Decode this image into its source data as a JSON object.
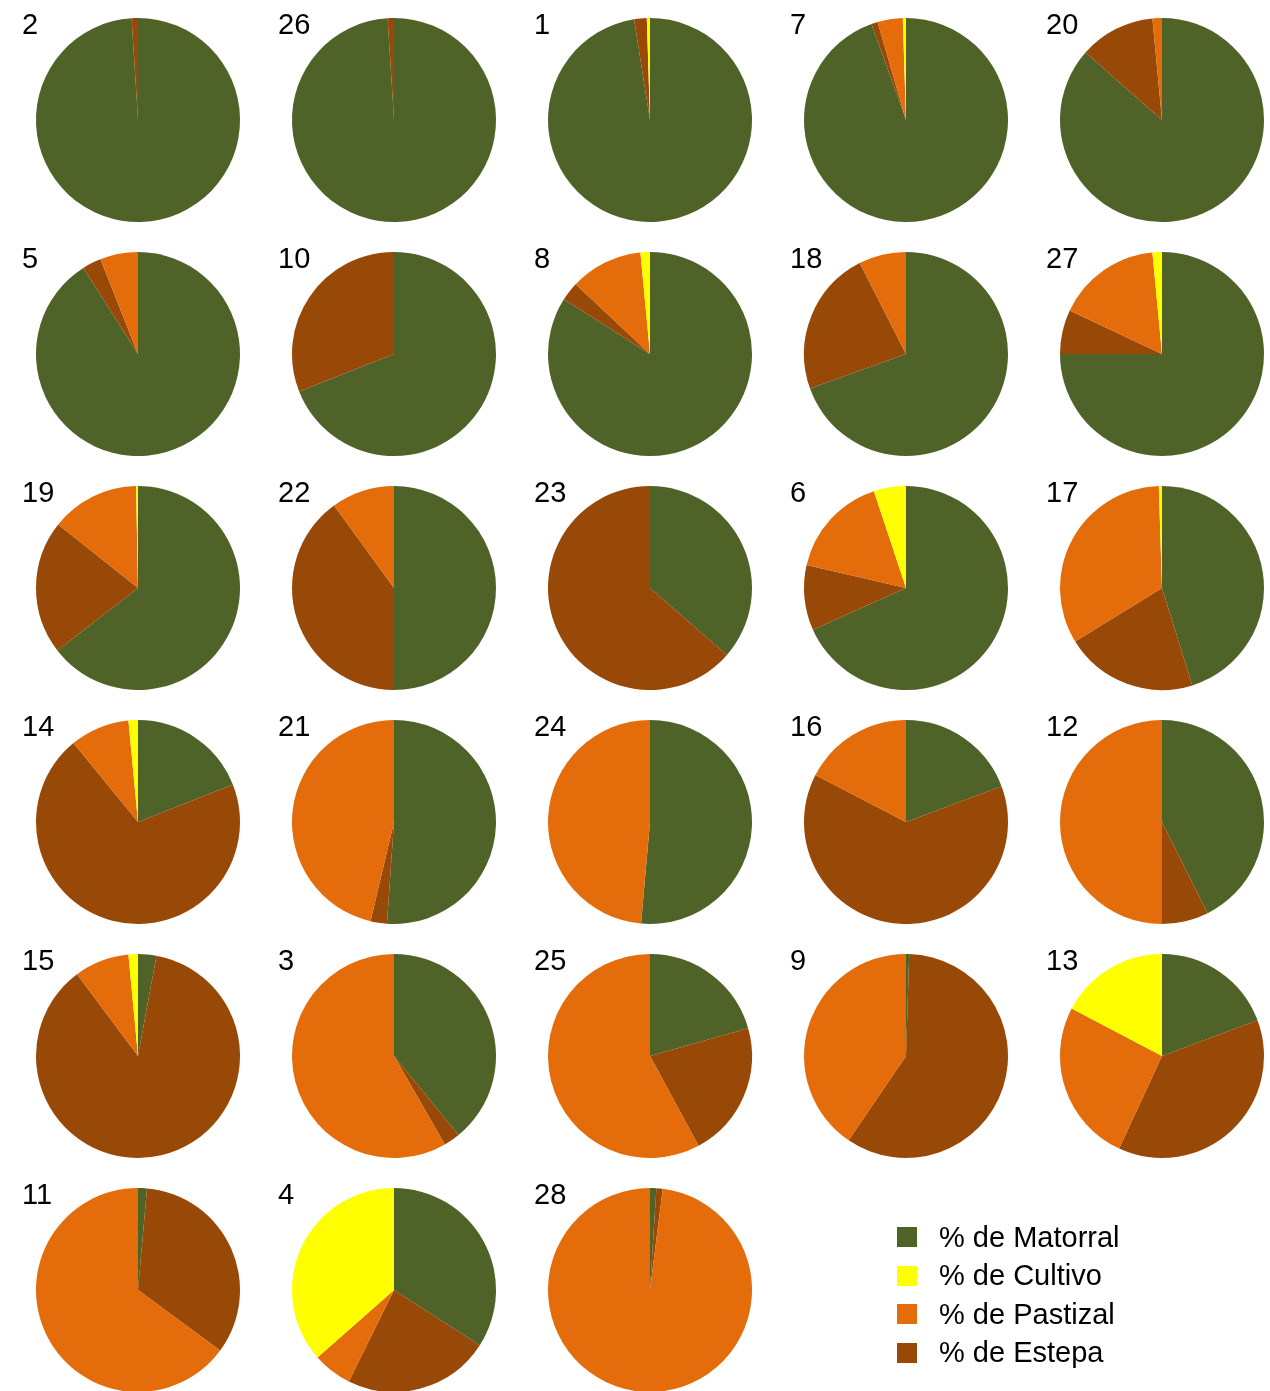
{
  "chart_data": [
    {
      "type": "pie",
      "title": "2",
      "categories": [
        "% de Matorral",
        "% de Cultivo",
        "% de Pastizal",
        "% de Estepa"
      ],
      "values": [
        99,
        0,
        0,
        1
      ],
      "colors": [
        "#4f6228",
        "#ffff00",
        "#e46c0a",
        "#984807"
      ],
      "legend": "bottom right"
    },
    {
      "type": "pie",
      "title": "26",
      "categories": [
        null,
        null,
        null,
        null
      ],
      "values": [
        99,
        0,
        0,
        1
      ],
      "colors": [
        "#4f6228",
        "#ffff00",
        "#e46c0a",
        "#984807"
      ]
    },
    {
      "type": "pie",
      "title": "1",
      "categories": [
        null,
        null,
        null,
        null
      ],
      "values": [
        97.5,
        0.5,
        0,
        2
      ],
      "colors": [
        "#4f6228",
        "#ffff00",
        "#e46c0a",
        "#984807"
      ]
    },
    {
      "type": "pie",
      "title": "7",
      "categories": [
        null,
        null,
        null,
        null
      ],
      "values": [
        94.5,
        0.5,
        4,
        1
      ],
      "colors": [
        "#4f6228",
        "#ffff00",
        "#e46c0a",
        "#984807"
      ]
    },
    {
      "type": "pie",
      "title": "20",
      "categories": [
        null,
        null,
        null,
        null
      ],
      "values": [
        86.5,
        0,
        1.5,
        12
      ],
      "colors": [
        "#4f6228",
        "#ffff00",
        "#e46c0a",
        "#984807"
      ]
    },
    {
      "type": "pie",
      "title": "5",
      "categories": [
        null,
        null,
        null,
        null
      ],
      "values": [
        91,
        0,
        6,
        3
      ],
      "colors": [
        "#4f6228",
        "#ffff00",
        "#e46c0a",
        "#984807"
      ]
    },
    {
      "type": "pie",
      "title": "10",
      "categories": [
        null,
        null,
        null,
        null
      ],
      "values": [
        69,
        0,
        0,
        31
      ],
      "colors": [
        "#4f6228",
        "#ffff00",
        "#e46c0a",
        "#984807"
      ]
    },
    {
      "type": "pie",
      "title": "8",
      "categories": [
        null,
        null,
        null,
        null
      ],
      "values": [
        84,
        1.5,
        11.5,
        3
      ],
      "colors": [
        "#4f6228",
        "#ffff00",
        "#e46c0a",
        "#984807"
      ]
    },
    {
      "type": "pie",
      "title": "18",
      "categories": [
        null,
        null,
        null,
        null
      ],
      "values": [
        69.5,
        0,
        7.5,
        23
      ],
      "colors": [
        "#4f6228",
        "#ffff00",
        "#e46c0a",
        "#984807"
      ]
    },
    {
      "type": "pie",
      "title": "27",
      "categories": [
        null,
        null,
        null,
        null
      ],
      "values": [
        75,
        1.5,
        16.5,
        7
      ],
      "colors": [
        "#4f6228",
        "#ffff00",
        "#e46c0a",
        "#984807"
      ]
    },
    {
      "type": "pie",
      "title": "19",
      "categories": [
        null,
        null,
        null,
        null
      ],
      "values": [
        64.5,
        0.3,
        14,
        21.2
      ],
      "colors": [
        "#4f6228",
        "#ffff00",
        "#e46c0a",
        "#984807"
      ]
    },
    {
      "type": "pie",
      "title": "22",
      "categories": [
        null,
        null,
        null,
        null
      ],
      "values": [
        50,
        0,
        10,
        40
      ],
      "colors": [
        "#4f6228",
        "#ffff00",
        "#e46c0a",
        "#984807"
      ]
    },
    {
      "type": "pie",
      "title": "23",
      "categories": [
        null,
        null,
        null,
        null
      ],
      "values": [
        36.4,
        0,
        0,
        63.6
      ],
      "colors": [
        "#4f6228",
        "#ffff00",
        "#e46c0a",
        "#984807"
      ]
    },
    {
      "type": "pie",
      "title": "6",
      "categories": [
        null,
        null,
        null,
        null
      ],
      "values": [
        68.3,
        5.1,
        16.3,
        10.3
      ],
      "colors": [
        "#4f6228",
        "#ffff00",
        "#e46c0a",
        "#984807"
      ]
    },
    {
      "type": "pie",
      "title": "17",
      "categories": [
        null,
        null,
        null,
        null
      ],
      "values": [
        45.2,
        0.5,
        33.3,
        21
      ],
      "colors": [
        "#4f6228",
        "#ffff00",
        "#e46c0a",
        "#984807"
      ]
    },
    {
      "type": "pie",
      "title": "14",
      "categories": [
        null,
        null,
        null,
        null
      ],
      "values": [
        19,
        1.5,
        9.4,
        70.1
      ],
      "colors": [
        "#4f6228",
        "#ffff00",
        "#e46c0a",
        "#984807"
      ]
    },
    {
      "type": "pie",
      "title": "21",
      "categories": [
        null,
        null,
        null,
        null
      ],
      "values": [
        51.1,
        0,
        46.3,
        2.6
      ],
      "colors": [
        "#4f6228",
        "#ffff00",
        "#e46c0a",
        "#984807"
      ]
    },
    {
      "type": "pie",
      "title": "24",
      "categories": [
        null,
        null,
        null,
        null
      ],
      "values": [
        51.4,
        0,
        48.6,
        0
      ],
      "colors": [
        "#4f6228",
        "#ffff00",
        "#e46c0a",
        "#984807"
      ]
    },
    {
      "type": "pie",
      "title": "16",
      "categories": [
        null,
        null,
        null,
        null
      ],
      "values": [
        19.3,
        0,
        17.4,
        63.3
      ],
      "colors": [
        "#4f6228",
        "#ffff00",
        "#e46c0a",
        "#984807"
      ]
    },
    {
      "type": "pie",
      "title": "12",
      "categories": [
        null,
        null,
        null,
        null
      ],
      "values": [
        42.6,
        0,
        50,
        7.4
      ],
      "colors": [
        "#4f6228",
        "#ffff00",
        "#e46c0a",
        "#984807"
      ]
    },
    {
      "type": "pie",
      "title": "15",
      "categories": [
        null,
        null,
        null,
        null
      ],
      "values": [
        2.9,
        1.5,
        8.7,
        86.9
      ],
      "colors": [
        "#4f6228",
        "#ffff00",
        "#e46c0a",
        "#984807"
      ]
    },
    {
      "type": "pie",
      "title": "3",
      "categories": [
        null,
        null,
        null,
        null
      ],
      "values": [
        39.1,
        0,
        58.3,
        2.6
      ],
      "colors": [
        "#4f6228",
        "#ffff00",
        "#e46c0a",
        "#984807"
      ]
    },
    {
      "type": "pie",
      "title": "25",
      "categories": [
        null,
        null,
        null,
        null
      ],
      "values": [
        20.6,
        0,
        57.9,
        21.5
      ],
      "colors": [
        "#4f6228",
        "#ffff00",
        "#e46c0a",
        "#984807"
      ]
    },
    {
      "type": "pie",
      "title": "9",
      "categories": [
        null,
        null,
        null,
        null
      ],
      "values": [
        0.5,
        0,
        40.5,
        59
      ],
      "colors": [
        "#4f6228",
        "#ffff00",
        "#e46c0a",
        "#984807"
      ]
    },
    {
      "type": "pie",
      "title": "13",
      "categories": [
        null,
        null,
        null,
        null
      ],
      "values": [
        19.3,
        17.3,
        25.8,
        37.6
      ],
      "colors": [
        "#4f6228",
        "#ffff00",
        "#e46c0a",
        "#984807"
      ]
    },
    {
      "type": "pie",
      "title": "11",
      "categories": [
        null,
        null,
        null,
        null
      ],
      "values": [
        1.4,
        0,
        64.9,
        33.7
      ],
      "colors": [
        "#4f6228",
        "#ffff00",
        "#e46c0a",
        "#984807"
      ]
    },
    {
      "type": "pie",
      "title": "4",
      "categories": [
        null,
        null,
        null,
        null
      ],
      "values": [
        34.1,
        36.5,
        6.2,
        23.2
      ],
      "colors": [
        "#4f6228",
        "#ffff00",
        "#e46c0a",
        "#984807"
      ]
    },
    {
      "type": "pie",
      "title": "28",
      "categories": [
        null,
        null,
        null,
        null
      ],
      "values": [
        1,
        0,
        98,
        1
      ],
      "colors": [
        "#4f6228",
        "#ffff00",
        "#e46c0a",
        "#984807"
      ]
    }
  ]
}
